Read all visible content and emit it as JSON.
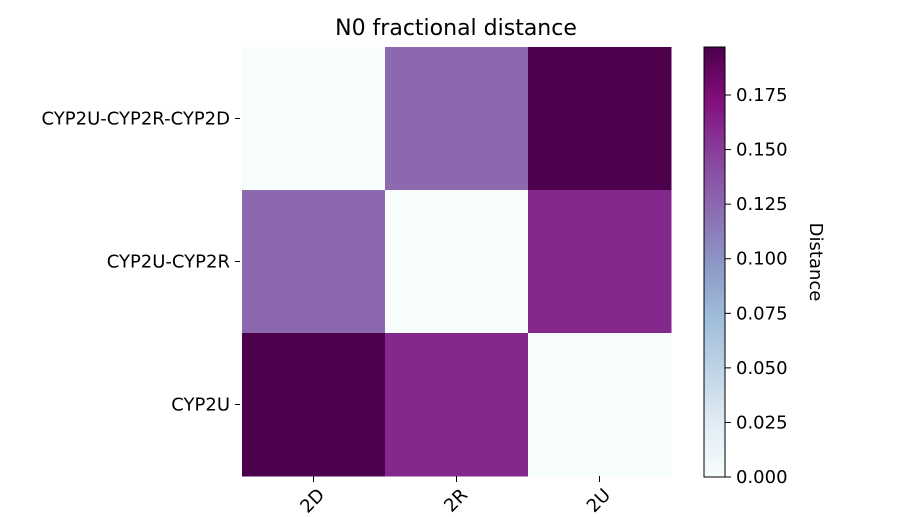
{
  "chart_data": {
    "type": "heatmap",
    "title": "N0 fractional distance",
    "row_labels": [
      "CYP2U-CYP2R-CYP2D",
      "CYP2U-CYP2R",
      "CYP2U"
    ],
    "col_labels": [
      "2D",
      "2R",
      "2U"
    ],
    "values": [
      [
        0.0,
        0.125,
        0.197
      ],
      [
        0.125,
        0.0,
        0.16
      ],
      [
        0.197,
        0.16,
        0.0
      ]
    ],
    "colorbar": {
      "label": "Distance",
      "range": [
        0.0,
        0.197
      ],
      "ticks": [
        0.0,
        0.025,
        0.05,
        0.075,
        0.1,
        0.125,
        0.15,
        0.175
      ],
      "tick_labels": [
        "0.000",
        "0.025",
        "0.050",
        "0.075",
        "0.100",
        "0.125",
        "0.150",
        "0.175"
      ],
      "colormap": "BuPu",
      "colormap_stops": [
        "#f7fcfd",
        "#e0ecf4",
        "#bfd3e6",
        "#9ebcda",
        "#8c96c6",
        "#8c6bb1",
        "#88419d",
        "#810f7c",
        "#4d004b"
      ]
    }
  }
}
